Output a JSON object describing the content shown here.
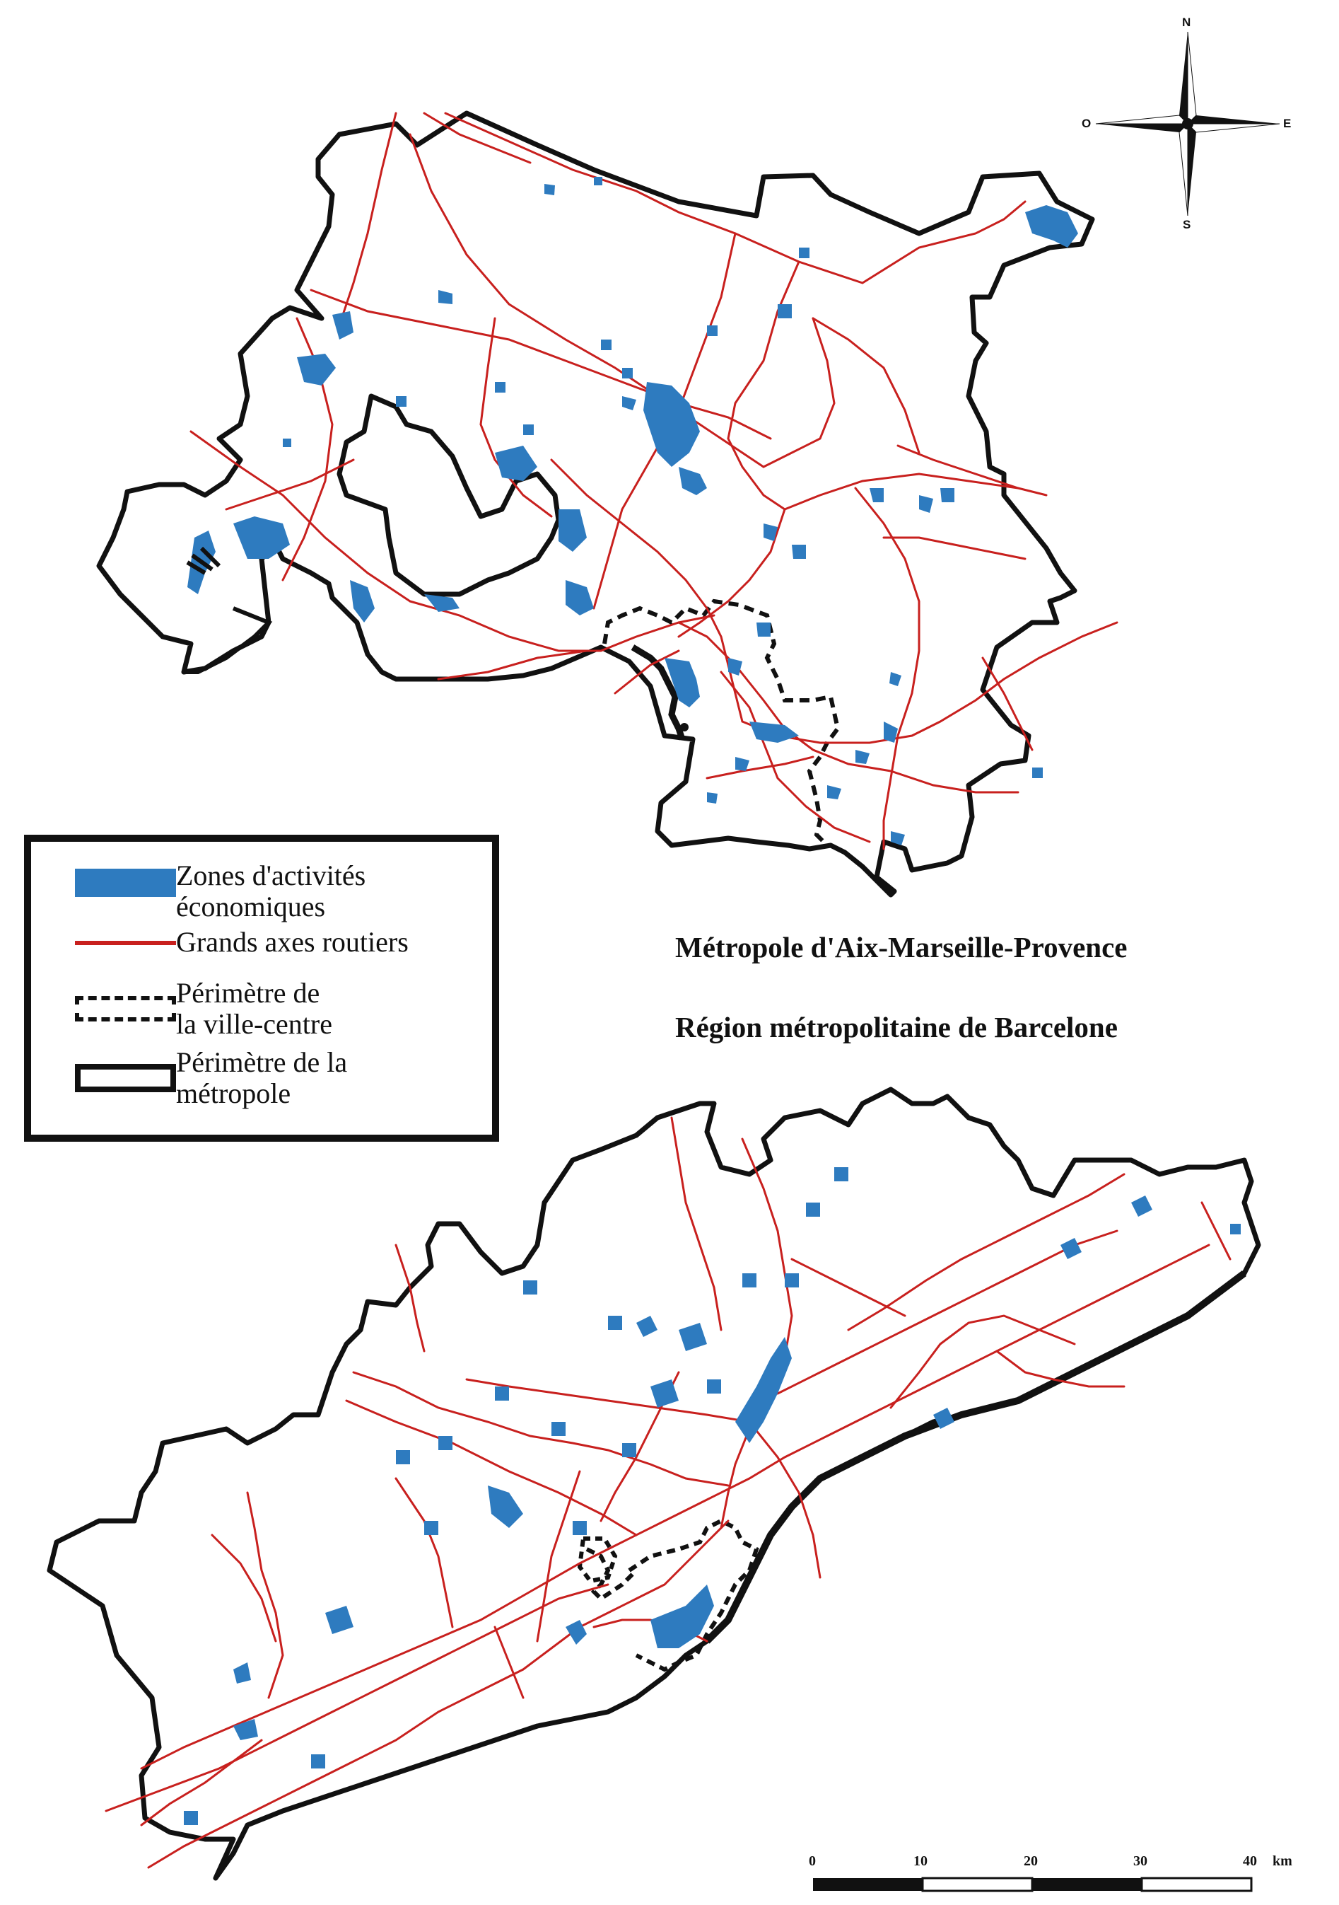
{
  "legend": {
    "items": [
      {
        "label": "Zones d'activités\néconomiques"
      },
      {
        "label": "Grands axes routiers"
      },
      {
        "label": "Périmètre de\nla ville-centre"
      },
      {
        "label": "Périmètre de la\nmétropole"
      }
    ]
  },
  "titles": {
    "aix_marseille": "Métropole d'Aix-Marseille-Provence",
    "barcelona": "Région métropolitaine de Barcelone"
  },
  "compass": {
    "north": "N",
    "south": "S",
    "east": "E",
    "west": "O"
  },
  "scale_bar": {
    "ticks": [
      "0",
      "10",
      "20",
      "30",
      "40"
    ],
    "unit": "km"
  },
  "colors": {
    "zones": "#2e7bbf",
    "roads": "#c8201e",
    "boundary": "#111111",
    "city_centre": "#111111"
  }
}
